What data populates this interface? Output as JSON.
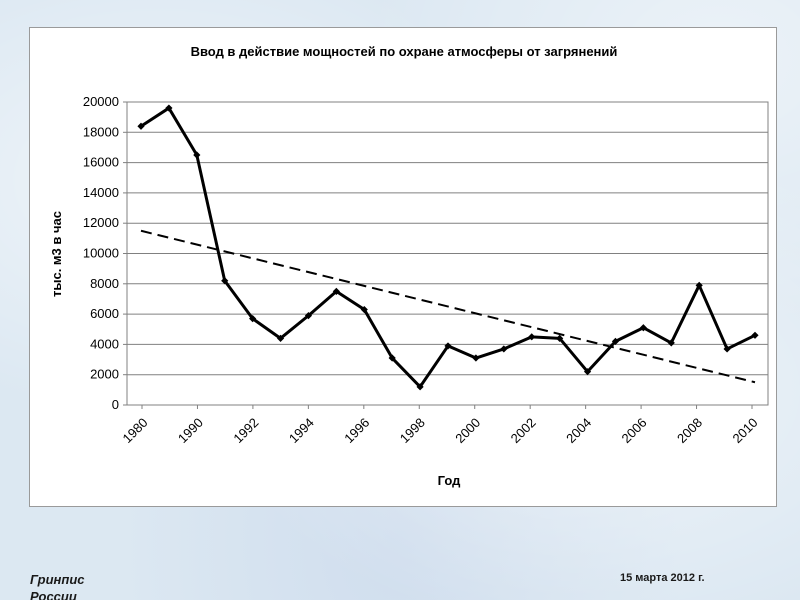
{
  "chart_data": {
    "type": "line",
    "title": "Ввод в действие мощностей по охране атмосферы от загрянений",
    "xlabel": "Год",
    "ylabel": "тыс. м3 в час",
    "ylim": [
      0,
      20000
    ],
    "y_ticks": [
      0,
      2000,
      4000,
      6000,
      8000,
      10000,
      12000,
      14000,
      16000,
      18000,
      20000
    ],
    "x_tick_labels": [
      "1980",
      "1990",
      "1992",
      "1994",
      "1996",
      "1998",
      "2000",
      "2002",
      "2004",
      "2006",
      "2008",
      "2010"
    ],
    "grid": true,
    "legend": "none",
    "series": [
      {
        "style": "solid-with-diamond-markers",
        "color": "#000000",
        "values": [
          18400,
          19600,
          16500,
          8200,
          5700,
          4400,
          5900,
          7500,
          6300,
          3100,
          1200,
          3900,
          3100,
          3700,
          4500,
          4400,
          2200,
          4200,
          5100,
          4100,
          7900,
          3700,
          4600
        ]
      },
      {
        "style": "dashed-trendline",
        "color": "#000000",
        "values": [
          11500,
          1500
        ]
      }
    ]
  },
  "footer": {
    "left_line1": "Гринпис",
    "left_line2": "России",
    "date": "15 марта 2012 г."
  }
}
